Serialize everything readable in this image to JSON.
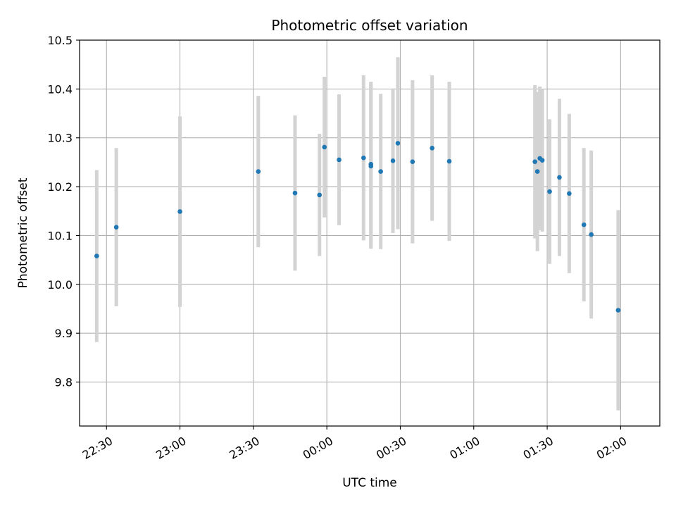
{
  "chart_data": {
    "type": "scatter",
    "title": "Photometric offset variation",
    "xlabel": "UTC time",
    "ylabel": "Photometric offset",
    "grid": true,
    "xlim": [
      "22:19",
      "02:16"
    ],
    "ylim": [
      9.71,
      10.5
    ],
    "x_ticks": [
      "22:30",
      "23:00",
      "23:30",
      "00:00",
      "00:30",
      "01:00",
      "01:30",
      "02:00"
    ],
    "y_ticks": [
      9.8,
      9.9,
      10.0,
      10.1,
      10.2,
      10.3,
      10.4,
      10.5
    ],
    "colors": {
      "marker": "#1f77b4",
      "errorbar": "#d3d3d3",
      "grid": "#b0b0b0"
    },
    "series": [
      {
        "points": [
          {
            "x": "22:26",
            "y": 10.058,
            "yerr": 0.176
          },
          {
            "x": "22:34",
            "y": 10.117,
            "yerr": 0.162
          },
          {
            "x": "23:00",
            "y": 10.149,
            "yerr": 0.195
          },
          {
            "x": "23:32",
            "y": 10.231,
            "yerr": 0.155
          },
          {
            "x": "23:47",
            "y": 10.187,
            "yerr": 0.159
          },
          {
            "x": "23:57",
            "y": 10.183,
            "yerr": 0.125
          },
          {
            "x": "23:59",
            "y": 10.281,
            "yerr": 0.144
          },
          {
            "x": "00:05",
            "y": 10.255,
            "yerr": 0.134
          },
          {
            "x": "00:15",
            "y": 10.259,
            "yerr": 0.169
          },
          {
            "x": "00:18",
            "y": 10.242,
            "yerr": 0.169
          },
          {
            "x": "00:18",
            "y": 10.246,
            "yerr": 0.169
          },
          {
            "x": "00:22",
            "y": 10.231,
            "yerr": 0.159
          },
          {
            "x": "00:27",
            "y": 10.253,
            "yerr": 0.148
          },
          {
            "x": "00:29",
            "y": 10.289,
            "yerr": 0.176
          },
          {
            "x": "00:35",
            "y": 10.251,
            "yerr": 0.167
          },
          {
            "x": "00:43",
            "y": 10.279,
            "yerr": 0.149
          },
          {
            "x": "00:50",
            "y": 10.252,
            "yerr": 0.163
          },
          {
            "x": "01:25",
            "y": 10.251,
            "yerr": 0.157
          },
          {
            "x": "01:26",
            "y": 10.231,
            "yerr": 0.163
          },
          {
            "x": "01:27",
            "y": 10.258,
            "yerr": 0.147
          },
          {
            "x": "01:28",
            "y": 10.254,
            "yerr": 0.146
          },
          {
            "x": "01:31",
            "y": 10.19,
            "yerr": 0.148
          },
          {
            "x": "01:35",
            "y": 10.219,
            "yerr": 0.161
          },
          {
            "x": "01:39",
            "y": 10.186,
            "yerr": 0.163
          },
          {
            "x": "01:45",
            "y": 10.122,
            "yerr": 0.157
          },
          {
            "x": "01:48",
            "y": 10.102,
            "yerr": 0.172
          },
          {
            "x": "01:59",
            "y": 9.947,
            "yerr": 0.205
          }
        ]
      }
    ]
  }
}
